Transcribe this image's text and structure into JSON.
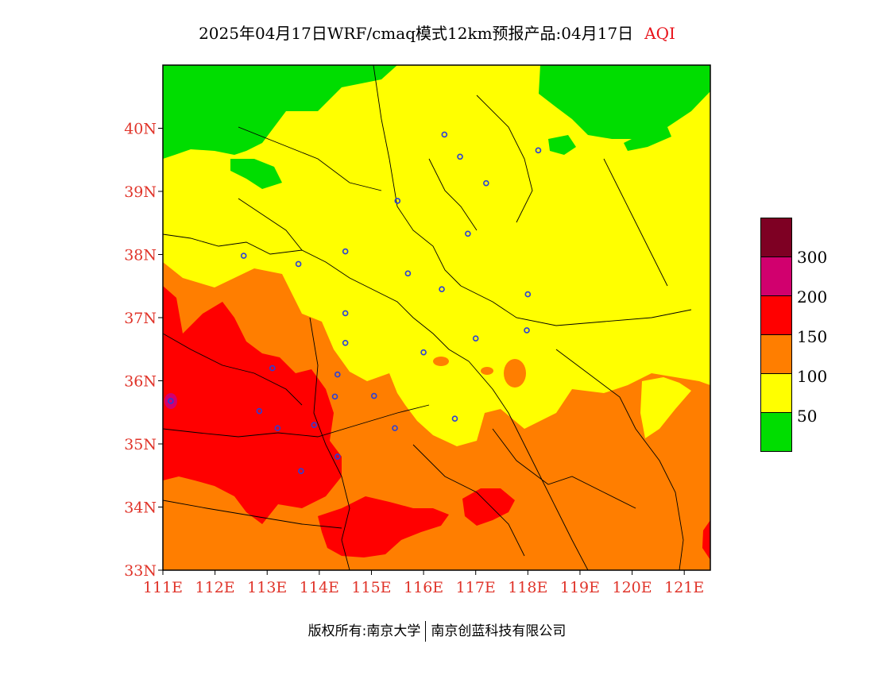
{
  "title": {
    "main": "2025年04月17日WRF/cmaq模式12km预报产品:04月17日",
    "variable": "AQI"
  },
  "map_data": {
    "lon_range": [
      111,
      121.5
    ],
    "lat_range": [
      33,
      41
    ],
    "lat_ticks": [
      {
        "value": 33,
        "label": "33N"
      },
      {
        "value": 34,
        "label": "34N"
      },
      {
        "value": 35,
        "label": "35N"
      },
      {
        "value": 36,
        "label": "36N"
      },
      {
        "value": 37,
        "label": "37N"
      },
      {
        "value": 38,
        "label": "38N"
      },
      {
        "value": 39,
        "label": "39N"
      },
      {
        "value": 40,
        "label": "40N"
      }
    ],
    "lon_ticks": [
      {
        "value": 111,
        "label": "111E"
      },
      {
        "value": 112,
        "label": "112E"
      },
      {
        "value": 113,
        "label": "113E"
      },
      {
        "value": 114,
        "label": "114E"
      },
      {
        "value": 115,
        "label": "115E"
      },
      {
        "value": 116,
        "label": "116E"
      },
      {
        "value": 117,
        "label": "117E"
      },
      {
        "value": 118,
        "label": "118E"
      },
      {
        "value": 119,
        "label": "119E"
      },
      {
        "value": 120,
        "label": "120E"
      },
      {
        "value": 121,
        "label": "121E"
      }
    ],
    "colors": {
      "green": "#00dd00",
      "yellow": "#ffff00",
      "orange": "#ff7e00",
      "red": "#ff0000",
      "magenta": "#d1006e",
      "maroon": "#7e0023"
    },
    "city_markers": [
      [
        116.4,
        39.9
      ],
      [
        116.7,
        39.55
      ],
      [
        118.2,
        39.65
      ],
      [
        117.2,
        39.13
      ],
      [
        115.5,
        38.85
      ],
      [
        116.85,
        38.33
      ],
      [
        112.55,
        37.98
      ],
      [
        113.6,
        37.85
      ],
      [
        114.5,
        38.05
      ],
      [
        115.7,
        37.7
      ],
      [
        116.35,
        37.45
      ],
      [
        118.0,
        37.37
      ],
      [
        114.5,
        37.07
      ],
      [
        114.5,
        36.6
      ],
      [
        117.0,
        36.67
      ],
      [
        117.98,
        36.8
      ],
      [
        113.1,
        36.2
      ],
      [
        114.35,
        36.1
      ],
      [
        116.0,
        36.45
      ],
      [
        112.85,
        35.52
      ],
      [
        113.2,
        35.25
      ],
      [
        113.9,
        35.3
      ],
      [
        114.3,
        35.75
      ],
      [
        115.05,
        35.76
      ],
      [
        115.45,
        35.25
      ],
      [
        116.6,
        35.4
      ],
      [
        114.35,
        34.8
      ],
      [
        113.65,
        34.57
      ],
      [
        111.15,
        35.68
      ]
    ]
  },
  "legend": {
    "boxes": [
      {
        "color": "#7e0023"
      },
      {
        "color": "#d1006e"
      },
      {
        "color": "#ff0000"
      },
      {
        "color": "#ff7e00"
      },
      {
        "color": "#ffff00"
      },
      {
        "color": "#00dd00"
      }
    ],
    "labels": [
      "300",
      "200",
      "150",
      "100",
      "50"
    ]
  },
  "footer": {
    "left": "版权所有:南京大学",
    "right": "南京创蓝科技有限公司"
  }
}
